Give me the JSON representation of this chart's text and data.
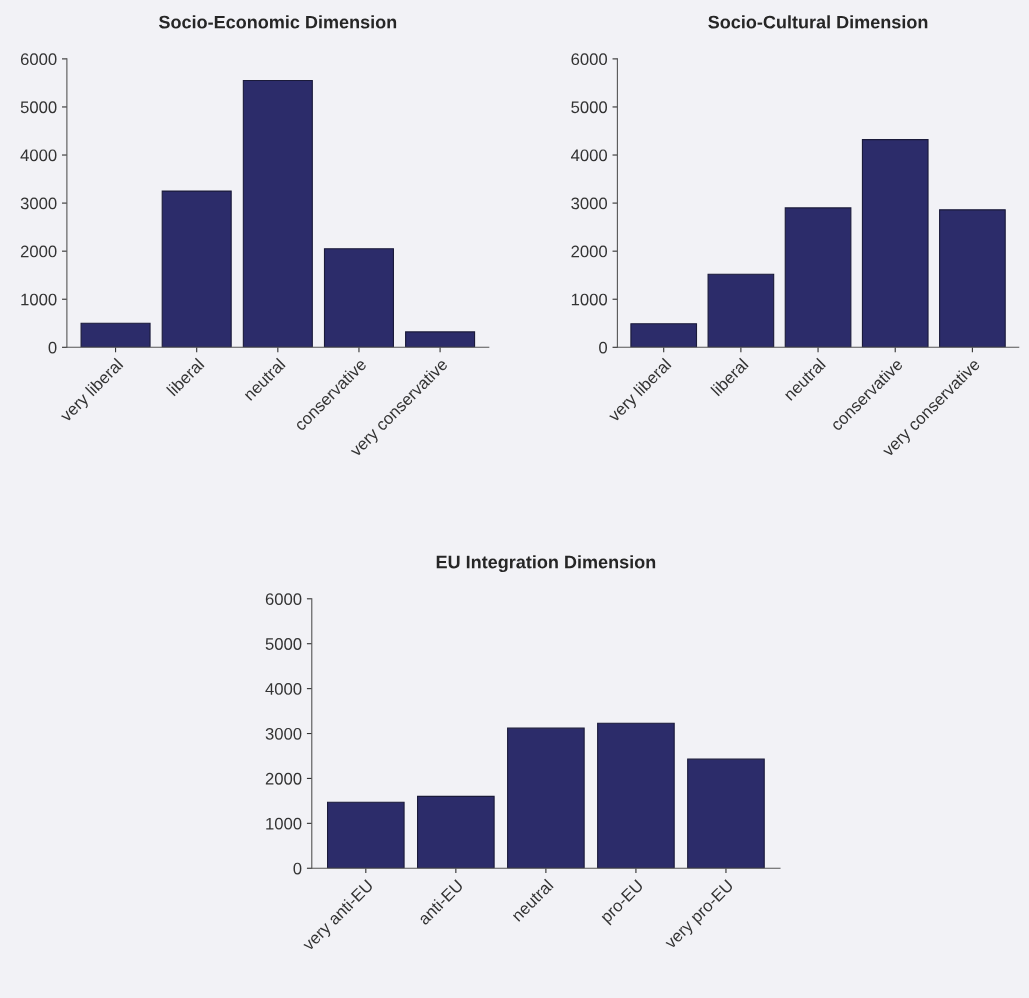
{
  "chart_data": [
    {
      "type": "bar",
      "title": "Socio-Economic Dimension",
      "categories": [
        "very liberal",
        "liberal",
        "neutral",
        "conservative",
        "very conservative"
      ],
      "values": [
        500,
        3250,
        5550,
        2050,
        320
      ],
      "color": "#2c2c6a",
      "ylim": [
        0,
        6000
      ],
      "yticks": [
        0,
        1000,
        2000,
        3000,
        4000,
        5000,
        6000
      ],
      "grid": false
    },
    {
      "type": "bar",
      "title": "Socio-Cultural Dimension",
      "categories": [
        "very liberal",
        "liberal",
        "neutral",
        "conservative",
        "very conservative"
      ],
      "values": [
        490,
        1520,
        2900,
        4320,
        2860
      ],
      "color": "#2c2c6a",
      "ylim": [
        0,
        6000
      ],
      "yticks": [
        0,
        1000,
        2000,
        3000,
        4000,
        5000,
        6000
      ],
      "grid": false
    },
    {
      "type": "bar",
      "title": "EU Integration Dimension",
      "categories": [
        "very anti-EU",
        "anti-EU",
        "neutral",
        "pro-EU",
        "very pro-EU"
      ],
      "values": [
        1470,
        1600,
        3120,
        3230,
        2430
      ],
      "color": "#2c2c6a",
      "ylim": [
        0,
        6000
      ],
      "yticks": [
        0,
        1000,
        2000,
        3000,
        4000,
        5000,
        6000
      ],
      "grid": false
    }
  ]
}
